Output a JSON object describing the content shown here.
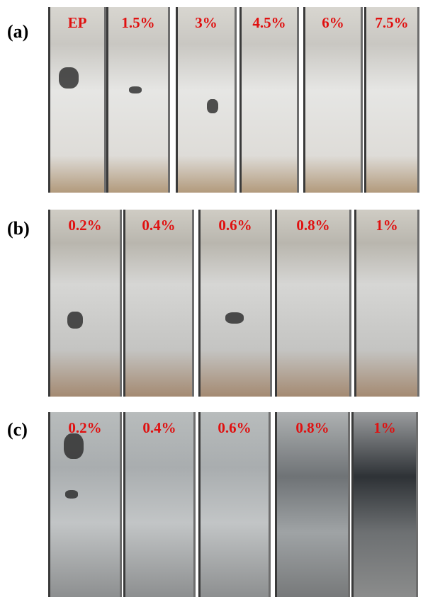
{
  "panels": [
    {
      "label": "(a)",
      "samples": [
        "EP",
        "1.5%",
        "3%",
        "4.5%",
        "6%",
        "7.5%"
      ]
    },
    {
      "label": "(b)",
      "samples": [
        "0.2%",
        "0.4%",
        "0.6%",
        "0.8%",
        "1%"
      ]
    },
    {
      "label": "(c)",
      "samples": [
        "0.2%",
        "0.4%",
        "0.6%",
        "0.8%",
        "1%"
      ]
    }
  ]
}
